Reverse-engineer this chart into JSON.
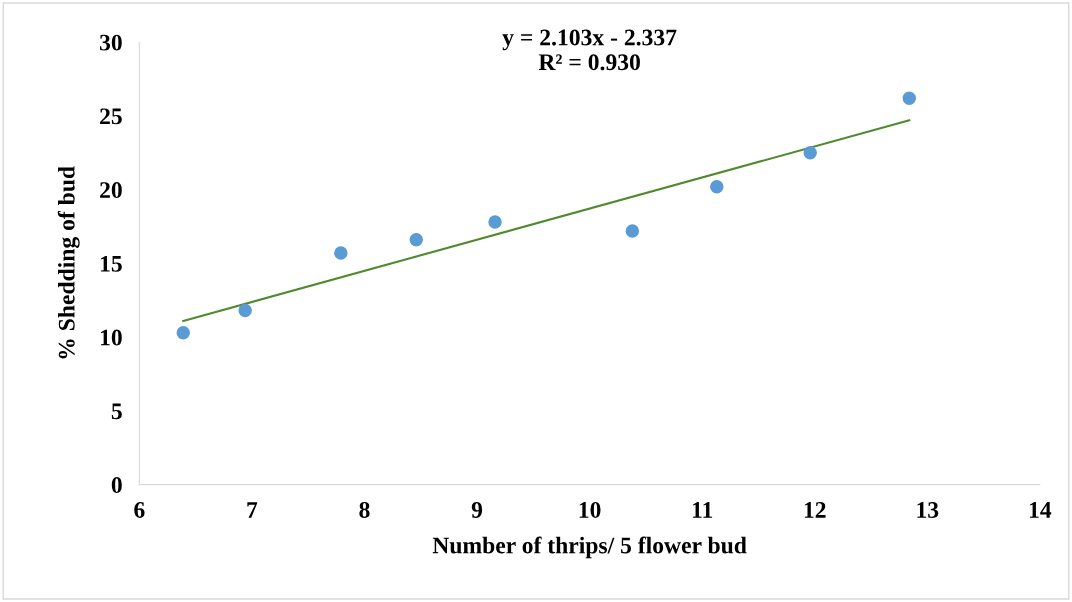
{
  "chart_data": {
    "type": "scatter",
    "xlabel": "Number of thrips/ 5 flower bud",
    "ylabel": "% Shedding of bud",
    "annotations": [
      "y = 2.103x - 2.337\nR² = 0.930"
    ],
    "xlim": [
      6,
      14
    ],
    "xticks": [
      6,
      7,
      8,
      9,
      10,
      11,
      12,
      13,
      14
    ],
    "ylim": [
      0,
      30
    ],
    "yticks": [
      0,
      5,
      10,
      15,
      20,
      25,
      30
    ],
    "grid": false,
    "legend": false,
    "series": [
      {
        "color": "#5b9bd5",
        "marker": "circle",
        "x": [
          6.39,
          6.94,
          7.79,
          8.46,
          9.16,
          10.38,
          11.13,
          11.96,
          12.84
        ],
        "values": [
          10.3,
          11.8,
          15.7,
          16.6,
          17.8,
          17.2,
          20.2,
          22.5,
          26.2
        ]
      },
      {
        "type": "line",
        "color": "#4e8a2e",
        "line_style": "solid",
        "marker": "none",
        "x": [
          6.39,
          12.84
        ],
        "values": [
          11.1,
          24.7
        ]
      }
    ]
  }
}
